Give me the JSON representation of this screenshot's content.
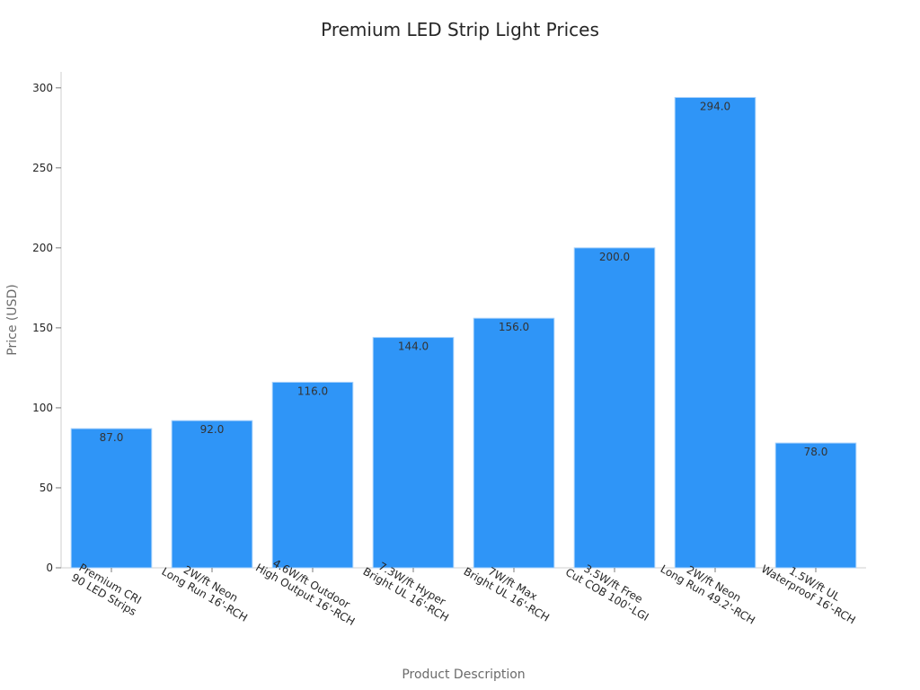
{
  "chart_data": {
    "type": "bar",
    "title": "Premium LED Strip Light Prices",
    "xlabel": "Product Description",
    "ylabel": "Price (USD)",
    "ylim": [
      0,
      310
    ],
    "yticks": [
      0,
      50,
      100,
      150,
      200,
      250,
      300
    ],
    "grid": false,
    "legend": "none",
    "bar_color": "#2f95f7",
    "bar_edge_color": "#a9d2fb",
    "categories": [
      [
        "Premium CRI",
        "90 LED Strips"
      ],
      [
        "2W/ft Neon",
        "Long Run 16'-RCH"
      ],
      [
        "4.6W/ft Outdoor",
        "High Output 16'-RCH"
      ],
      [
        "7.3W/ft Hyper",
        "Bright UL 16'-RCH"
      ],
      [
        "7W/ft Max",
        "Bright UL 16'-RCH"
      ],
      [
        "3.5W/ft Free",
        "Cut COB 100'-LGI"
      ],
      [
        "2W/ft Neon",
        "Long Run 49.2'-RCH"
      ],
      [
        "1.5W/ft UL",
        "Waterproof 16'-RCH"
      ]
    ],
    "values": [
      87.0,
      92.0,
      116.0,
      144.0,
      156.0,
      200.0,
      294.0,
      78.0
    ],
    "value_labels": [
      "87.0",
      "92.0",
      "116.0",
      "144.0",
      "156.0",
      "200.0",
      "294.0",
      "78.0"
    ]
  }
}
